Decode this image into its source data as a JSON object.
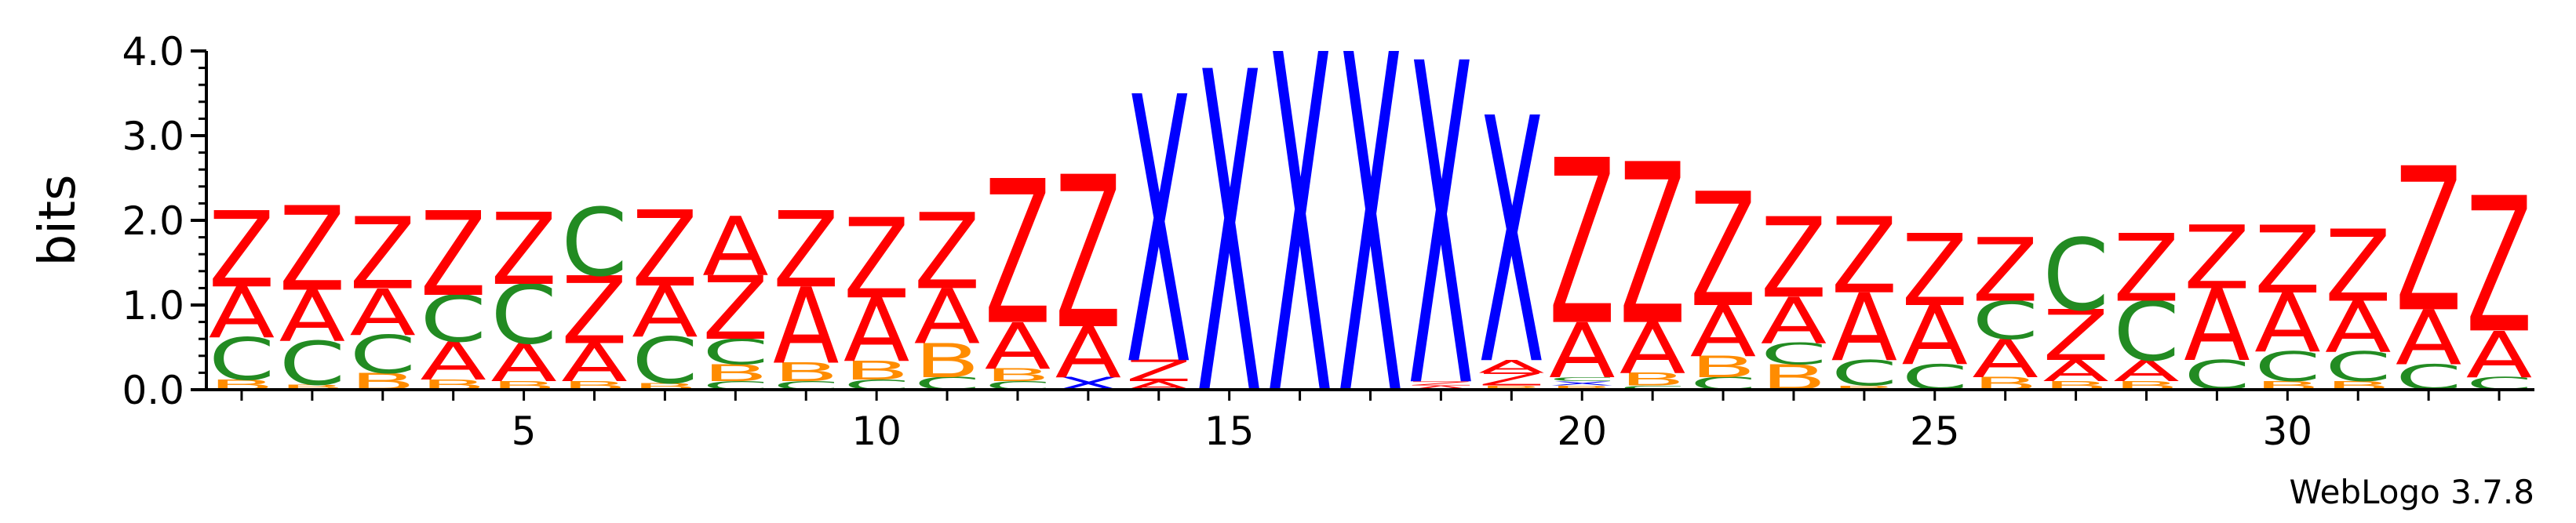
{
  "chart_data": {
    "type": "sequence-logo",
    "ylabel": "bits",
    "ylim": [
      0,
      4
    ],
    "y_ticks": [
      "0.0",
      "1.0",
      "2.0",
      "3.0",
      "4.0"
    ],
    "x_ticks": [
      5,
      10,
      15,
      20,
      25,
      30
    ],
    "positions": 33,
    "colors": {
      "Z": "#ff0000",
      "A": "#ff0000",
      "X": "#0000ff",
      "C": "#228b22",
      "B": "#ff8c00"
    },
    "columns": [
      {
        "pos": 1,
        "stack": [
          [
            "B",
            0.12
          ],
          [
            "C",
            0.5
          ],
          [
            "A",
            0.6
          ],
          [
            "Z",
            0.9
          ]
        ]
      },
      {
        "pos": 2,
        "stack": [
          [
            "B",
            0.06
          ],
          [
            "C",
            0.52
          ],
          [
            "A",
            0.6
          ],
          [
            "Z",
            1.0
          ]
        ]
      },
      {
        "pos": 3,
        "stack": [
          [
            "B",
            0.2
          ],
          [
            "C",
            0.45
          ],
          [
            "A",
            0.55
          ],
          [
            "Z",
            0.85
          ]
        ]
      },
      {
        "pos": 4,
        "stack": [
          [
            "B",
            0.12
          ],
          [
            "A",
            0.45
          ],
          [
            "C",
            0.55
          ],
          [
            "Z",
            1.0
          ]
        ]
      },
      {
        "pos": 5,
        "stack": [
          [
            "B",
            0.1
          ],
          [
            "A",
            0.45
          ],
          [
            "C",
            0.7
          ],
          [
            "Z",
            0.85
          ]
        ]
      },
      {
        "pos": 6,
        "stack": [
          [
            "B",
            0.1
          ],
          [
            "A",
            0.45
          ],
          [
            "Z",
            0.8
          ],
          [
            "C",
            0.8
          ]
        ]
      },
      {
        "pos": 7,
        "stack": [
          [
            "B",
            0.08
          ],
          [
            "C",
            0.55
          ],
          [
            "A",
            0.6
          ],
          [
            "Z",
            0.9
          ]
        ]
      },
      {
        "pos": 8,
        "stack": [
          [
            "C",
            0.1
          ],
          [
            "B",
            0.2
          ],
          [
            "C",
            0.3
          ],
          [
            "Z",
            0.75
          ],
          [
            "A",
            0.7
          ]
        ]
      },
      {
        "pos": 9,
        "stack": [
          [
            "C",
            0.1
          ],
          [
            "B",
            0.22
          ],
          [
            "A",
            0.9
          ],
          [
            "Z",
            0.9
          ]
        ]
      },
      {
        "pos": 10,
        "stack": [
          [
            "C",
            0.12
          ],
          [
            "B",
            0.22
          ],
          [
            "A",
            0.75
          ],
          [
            "Z",
            0.95
          ]
        ]
      },
      {
        "pos": 11,
        "stack": [
          [
            "C",
            0.15
          ],
          [
            "B",
            0.4
          ],
          [
            "A",
            0.65
          ],
          [
            "Z",
            0.9
          ]
        ]
      },
      {
        "pos": 12,
        "stack": [
          [
            "C",
            0.1
          ],
          [
            "B",
            0.15
          ],
          [
            "A",
            0.55
          ],
          [
            "Z",
            1.7
          ]
        ]
      },
      {
        "pos": 13,
        "stack": [
          [
            "X",
            0.15
          ],
          [
            "A",
            0.6
          ],
          [
            "Z",
            1.8
          ]
        ]
      },
      {
        "pos": 14,
        "stack": [
          [
            "A",
            0.1
          ],
          [
            "Z",
            0.25
          ],
          [
            "X",
            3.15
          ]
        ]
      },
      {
        "pos": 15,
        "stack": [
          [
            "X",
            3.8
          ]
        ]
      },
      {
        "pos": 16,
        "stack": [
          [
            "X",
            4.0
          ]
        ]
      },
      {
        "pos": 17,
        "stack": [
          [
            "X",
            4.0
          ]
        ]
      },
      {
        "pos": 18,
        "stack": [
          [
            "A",
            0.05
          ],
          [
            "Z",
            0.05
          ],
          [
            "X",
            3.8
          ]
        ]
      },
      {
        "pos": 19,
        "stack": [
          [
            "B",
            0.05
          ],
          [
            "Z",
            0.15
          ],
          [
            "A",
            0.15
          ],
          [
            "X",
            2.9
          ]
        ]
      },
      {
        "pos": 20,
        "stack": [
          [
            "B",
            0.05
          ],
          [
            "X",
            0.05
          ],
          [
            "C",
            0.05
          ],
          [
            "A",
            0.65
          ],
          [
            "Z",
            1.95
          ]
        ]
      },
      {
        "pos": 21,
        "stack": [
          [
            "C",
            0.05
          ],
          [
            "B",
            0.15
          ],
          [
            "A",
            0.6
          ],
          [
            "Z",
            1.9
          ]
        ]
      },
      {
        "pos": 22,
        "stack": [
          [
            "C",
            0.15
          ],
          [
            "B",
            0.25
          ],
          [
            "A",
            0.6
          ],
          [
            "Z",
            1.35
          ]
        ]
      },
      {
        "pos": 23,
        "stack": [
          [
            "B",
            0.3
          ],
          [
            "C",
            0.25
          ],
          [
            "A",
            0.55
          ],
          [
            "Z",
            0.95
          ]
        ]
      },
      {
        "pos": 24,
        "stack": [
          [
            "B",
            0.05
          ],
          [
            "C",
            0.3
          ],
          [
            "A",
            0.8
          ],
          [
            "Z",
            0.9
          ]
        ]
      },
      {
        "pos": 25,
        "stack": [
          [
            "C",
            0.3
          ],
          [
            "A",
            0.7
          ],
          [
            "Z",
            0.85
          ]
        ]
      },
      {
        "pos": 26,
        "stack": [
          [
            "B",
            0.15
          ],
          [
            "A",
            0.45
          ],
          [
            "C",
            0.45
          ],
          [
            "Z",
            0.75
          ]
        ]
      },
      {
        "pos": 27,
        "stack": [
          [
            "B",
            0.1
          ],
          [
            "A",
            0.25
          ],
          [
            "Z",
            0.6
          ],
          [
            "C",
            0.85
          ]
        ]
      },
      {
        "pos": 28,
        "stack": [
          [
            "B",
            0.1
          ],
          [
            "A",
            0.25
          ],
          [
            "C",
            0.7
          ],
          [
            "Z",
            0.8
          ]
        ]
      },
      {
        "pos": 29,
        "stack": [
          [
            "C",
            0.35
          ],
          [
            "A",
            0.85
          ],
          [
            "Z",
            0.75
          ]
        ]
      },
      {
        "pos": 30,
        "stack": [
          [
            "B",
            0.1
          ],
          [
            "C",
            0.35
          ],
          [
            "A",
            0.7
          ],
          [
            "Z",
            0.8
          ]
        ]
      },
      {
        "pos": 31,
        "stack": [
          [
            "B",
            0.1
          ],
          [
            "C",
            0.35
          ],
          [
            "A",
            0.6
          ],
          [
            "Z",
            0.85
          ]
        ]
      },
      {
        "pos": 32,
        "stack": [
          [
            "C",
            0.3
          ],
          [
            "A",
            0.65
          ],
          [
            "Z",
            1.7
          ]
        ]
      },
      {
        "pos": 33,
        "stack": [
          [
            "C",
            0.15
          ],
          [
            "A",
            0.55
          ],
          [
            "Z",
            1.6
          ]
        ]
      }
    ]
  },
  "credit": "WebLogo 3.7.8"
}
